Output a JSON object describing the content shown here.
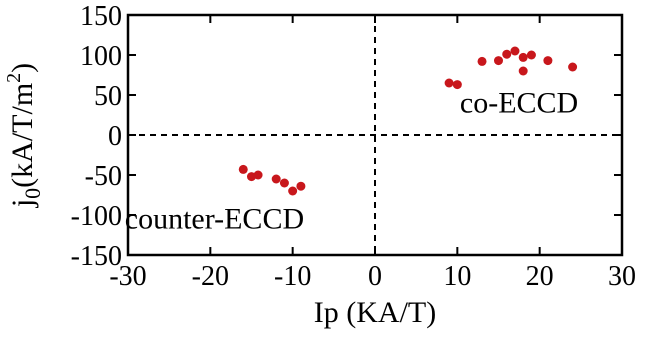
{
  "chart_data": {
    "type": "scatter",
    "title": "",
    "xlabel": "Ip (KA/T)",
    "ylabel": {
      "main": "j",
      "sub": "0",
      "unit": "(kA/T/m",
      "sup": "2",
      "close": ")"
    },
    "xlim": [
      -30,
      30
    ],
    "ylim": [
      -150,
      150
    ],
    "xticks": [
      -30,
      -20,
      -10,
      0,
      10,
      20,
      30
    ],
    "yticks": [
      -150,
      -100,
      -50,
      0,
      50,
      100,
      150
    ],
    "xtick_labels": [
      "-30",
      "-20",
      "-10",
      "0",
      "10",
      "20",
      "30"
    ],
    "ytick_labels": [
      "-150",
      "-100",
      "-50",
      "0",
      "50",
      "100",
      "150"
    ],
    "grid": false,
    "reference_lines": {
      "x": 0,
      "y": 0,
      "style": "dashed"
    },
    "annotations": [
      {
        "text": "co-ECCD",
        "x": 17.5,
        "y": 28
      },
      {
        "text": "counter-ECCD",
        "x": -19.5,
        "y": -117
      }
    ],
    "marker_color": "#c8171c",
    "series": [
      {
        "x": [
          9.0,
          10.0,
          13.0,
          15.0,
          16.0,
          17.0,
          18.0,
          18.0,
          19.0,
          21.0,
          24.0,
          -16.0,
          -15.0,
          -14.2,
          -12.0,
          -11.0,
          -10.0,
          -9.0
        ],
        "y": [
          65,
          63,
          92,
          93,
          101,
          105,
          97,
          80,
          100,
          93,
          85,
          -43,
          -52,
          -50,
          -55,
          -60,
          -70,
          -64
        ]
      }
    ]
  }
}
